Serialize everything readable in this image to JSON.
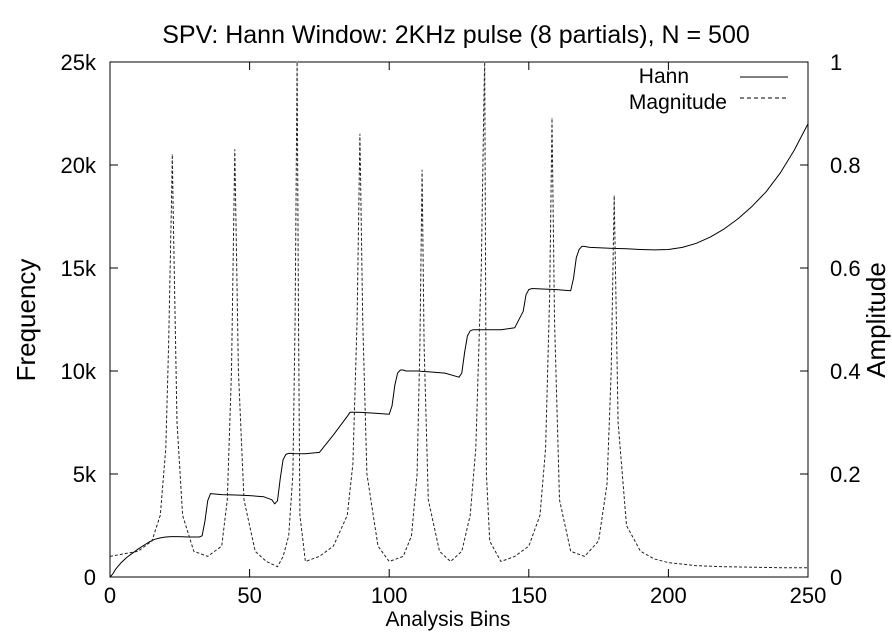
{
  "chart_data": {
    "type": "line",
    "title": "SPV: Hann Window: 2KHz pulse (8 partials), N = 500",
    "xlabel": "Analysis Bins",
    "ylabel": "Frequency",
    "y2label": "Amplitude",
    "xlim": [
      0,
      250
    ],
    "ylim": [
      0,
      25000
    ],
    "y2lim": [
      0,
      1
    ],
    "x_ticks": [
      "0",
      "50",
      "100",
      "150",
      "200",
      "250"
    ],
    "y_ticks": [
      "0",
      "5k",
      "10k",
      "15k",
      "20k",
      "25k"
    ],
    "y2_ticks": [
      "0",
      "0.2",
      "0.4",
      "0.6",
      "0.8",
      "1"
    ],
    "grid": false,
    "legend_position": "top-right",
    "series": [
      {
        "name": "Hann",
        "axis": "left",
        "style": "solid",
        "x": [
          0,
          1,
          2,
          4,
          6,
          8,
          10,
          12,
          14,
          16,
          18,
          20,
          22,
          24,
          26,
          28,
          30,
          31,
          32,
          33,
          34,
          35,
          36,
          40,
          45,
          50,
          55,
          58,
          59,
          60,
          61,
          62,
          63,
          64,
          65,
          66,
          70,
          75,
          80,
          85,
          86,
          87,
          88,
          90,
          95,
          100,
          101,
          102,
          103,
          104,
          105,
          106,
          110,
          115,
          120,
          125,
          126,
          127,
          128,
          129,
          130,
          135,
          140,
          145,
          148,
          149,
          150,
          151,
          152,
          155,
          160,
          165,
          166,
          167,
          168,
          169,
          170,
          171,
          172,
          175,
          180,
          185,
          190,
          195,
          200,
          205,
          210,
          215,
          220,
          225,
          230,
          235,
          240,
          245,
          250
        ],
        "y": [
          0,
          150,
          380,
          700,
          950,
          1150,
          1350,
          1530,
          1700,
          1830,
          1900,
          1940,
          1960,
          1960,
          1950,
          1940,
          1940,
          1940,
          1940,
          2000,
          2700,
          3700,
          4050,
          4000,
          3980,
          3950,
          3900,
          3750,
          3550,
          3700,
          4800,
          5700,
          5950,
          6000,
          6000,
          5990,
          5980,
          6050,
          6900,
          7800,
          8000,
          8000,
          8000,
          7990,
          7950,
          7900,
          8300,
          9300,
          9900,
          10050,
          10050,
          10000,
          10000,
          9950,
          9900,
          9700,
          9900,
          10900,
          11700,
          11950,
          12000,
          12000,
          12000,
          12100,
          12900,
          13700,
          13950,
          14000,
          14000,
          13980,
          13950,
          13900,
          14500,
          15500,
          15900,
          16050,
          16050,
          16020,
          16000,
          15980,
          15950,
          15930,
          15900,
          15880,
          15900,
          16000,
          16200,
          16500,
          16900,
          17400,
          18000,
          18700,
          19600,
          20700,
          22000
        ]
      },
      {
        "name": "Magnitude",
        "axis": "right",
        "style": "dashed",
        "peaks": [
          {
            "x": 22.3,
            "y": 0.82
          },
          {
            "x": 44.7,
            "y": 0.83
          },
          {
            "x": 67.0,
            "y": 1.0
          },
          {
            "x": 89.5,
            "y": 0.86
          },
          {
            "x": 111.8,
            "y": 0.79
          },
          {
            "x": 134.2,
            "y": 1.0
          },
          {
            "x": 158.3,
            "y": 0.89
          },
          {
            "x": 180.6,
            "y": 0.74
          }
        ],
        "x": [
          0,
          5,
          10,
          15,
          18,
          20,
          21,
          22,
          22.3,
          22.6,
          24,
          26,
          30,
          35,
          40,
          42,
          43.5,
          44.7,
          46,
          48,
          52,
          56,
          60,
          62,
          64,
          65.5,
          66.3,
          67,
          67.5,
          68,
          70,
          75,
          80,
          85,
          87,
          88.5,
          89.5,
          90.5,
          92,
          96,
          100,
          105,
          108,
          110,
          111,
          111.8,
          112.5,
          114,
          118,
          122,
          126,
          129,
          131,
          133,
          134,
          134.2,
          134.8,
          136,
          140,
          145,
          150,
          154,
          156,
          157.5,
          158.3,
          159.2,
          161,
          165,
          170,
          175,
          178,
          179.5,
          180.6,
          182,
          185,
          190,
          195,
          200,
          210,
          220,
          230,
          240,
          250
        ],
        "y": [
          0.04,
          0.045,
          0.05,
          0.07,
          0.12,
          0.25,
          0.45,
          0.72,
          0.82,
          0.72,
          0.3,
          0.12,
          0.05,
          0.04,
          0.06,
          0.15,
          0.4,
          0.83,
          0.4,
          0.15,
          0.05,
          0.03,
          0.02,
          0.04,
          0.08,
          0.2,
          0.5,
          1.0,
          0.5,
          0.12,
          0.03,
          0.04,
          0.06,
          0.12,
          0.22,
          0.5,
          0.86,
          0.5,
          0.2,
          0.06,
          0.03,
          0.04,
          0.08,
          0.2,
          0.45,
          0.79,
          0.45,
          0.15,
          0.05,
          0.03,
          0.05,
          0.12,
          0.25,
          0.6,
          0.95,
          1.0,
          0.2,
          0.07,
          0.03,
          0.04,
          0.06,
          0.12,
          0.25,
          0.55,
          0.89,
          0.5,
          0.15,
          0.05,
          0.04,
          0.07,
          0.18,
          0.4,
          0.74,
          0.3,
          0.1,
          0.05,
          0.035,
          0.028,
          0.022,
          0.02,
          0.019,
          0.018,
          0.018
        ]
      }
    ]
  }
}
